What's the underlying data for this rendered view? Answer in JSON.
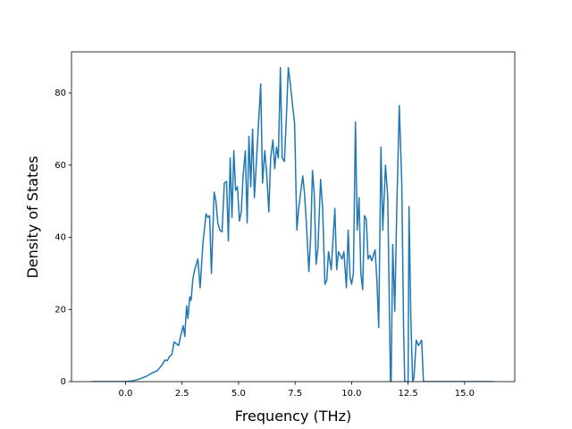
{
  "chart_data": {
    "type": "line",
    "xlabel": "Frequency (THz)",
    "ylabel": "Density of States",
    "color": "#1f77b4",
    "xlim": [
      -2.39,
      17.22
    ],
    "ylim": [
      0,
      91.4
    ],
    "xticks": [
      {
        "value": 0,
        "label": "0.0"
      },
      {
        "value": 2.5,
        "label": "2.5"
      },
      {
        "value": 5,
        "label": "5.0"
      },
      {
        "value": 7.5,
        "label": "7.5"
      },
      {
        "value": 10,
        "label": "10.0"
      },
      {
        "value": 12.5,
        "label": "12.5"
      },
      {
        "value": 15,
        "label": "15.0"
      }
    ],
    "yticks": [
      0,
      20,
      40,
      60,
      80
    ],
    "x": [
      -1.5,
      0,
      0.3,
      0.6,
      0.9,
      1.2,
      1.4,
      1.6,
      1.75,
      1.85,
      1.95,
      2.05,
      2.15,
      2.25,
      2.35,
      2.45,
      2.55,
      2.62,
      2.7,
      2.76,
      2.84,
      2.9,
      2.98,
      3.06,
      3.2,
      3.3,
      3.42,
      3.56,
      3.64,
      3.72,
      3.8,
      3.92,
      4.0,
      4.08,
      4.17,
      4.27,
      4.37,
      4.47,
      4.55,
      4.63,
      4.71,
      4.79,
      4.87,
      4.95,
      5.04,
      5.12,
      5.2,
      5.3,
      5.38,
      5.46,
      5.54,
      5.62,
      5.7,
      5.8,
      5.98,
      6.06,
      6.16,
      6.24,
      6.34,
      6.42,
      6.52,
      6.6,
      6.68,
      6.76,
      6.85,
      6.93,
      7.03,
      7.12,
      7.2,
      7.3,
      7.4,
      7.48,
      7.58,
      7.66,
      7.74,
      7.84,
      7.92,
      8.0,
      8.11,
      8.19,
      8.27,
      8.35,
      8.43,
      8.51,
      8.63,
      8.72,
      8.82,
      8.9,
      8.98,
      9.1,
      9.26,
      9.34,
      9.42,
      9.5,
      9.58,
      9.66,
      9.77,
      9.85,
      9.93,
      10.0,
      10.08,
      10.17,
      10.25,
      10.33,
      10.41,
      10.49,
      10.57,
      10.65,
      10.73,
      10.81,
      10.89,
      11.04,
      11.12,
      11.2,
      11.3,
      11.38,
      11.5,
      11.6,
      11.72,
      11.75,
      11.82,
      11.91,
      12.0,
      12.11,
      12.22,
      12.3,
      12.35,
      12.5,
      12.54,
      12.62,
      12.7,
      12.76,
      12.86,
      12.96,
      13.1,
      13.18,
      16.3
    ],
    "values": [
      0,
      0,
      0.2,
      0.7,
      1.4,
      2.5,
      3,
      4.5,
      6,
      5.8,
      7,
      7.5,
      11,
      10.5,
      10,
      13,
      15.5,
      12.5,
      21,
      17.5,
      23.5,
      22.5,
      28.5,
      31,
      34,
      26,
      38,
      46.5,
      45.5,
      46,
      30,
      52.5,
      50,
      44,
      42,
      41.5,
      55,
      55.5,
      39,
      62,
      45.5,
      64,
      53,
      54,
      44.5,
      47,
      57,
      64,
      44,
      68,
      54,
      70,
      51,
      62,
      82.5,
      55,
      64,
      58,
      47,
      62,
      67,
      59,
      65,
      62,
      87,
      62,
      61,
      74,
      87,
      82,
      76,
      71.5,
      42,
      48,
      52,
      57,
      52,
      44,
      30.5,
      40,
      58.5,
      52,
      32.5,
      37,
      56,
      48,
      27,
      28,
      36,
      31,
      48,
      31,
      36,
      35,
      34,
      36,
      26,
      42,
      29,
      27,
      30,
      72,
      42,
      51,
      30,
      25.5,
      46,
      45,
      34,
      35,
      33.5,
      36.5,
      28,
      15,
      65,
      42,
      60,
      51,
      0,
      0,
      38,
      19.5,
      48,
      76.5,
      55,
      15,
      0,
      0,
      48.5,
      18,
      0,
      1,
      11.5,
      10,
      11.5,
      0,
      0
    ]
  }
}
